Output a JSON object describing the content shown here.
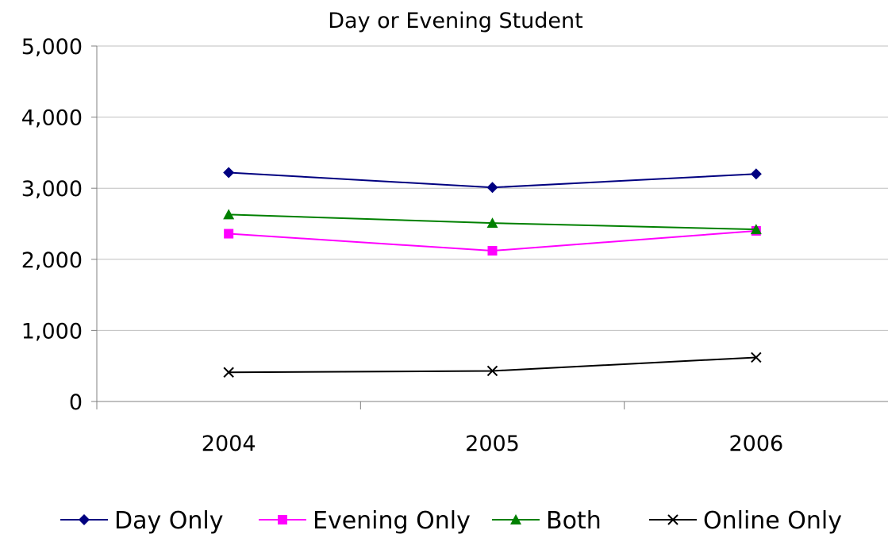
{
  "chart_data": {
    "type": "line",
    "title": "Day or Evening Student",
    "xlabel": "",
    "ylabel": "",
    "categories": [
      "2004",
      "2005",
      "2006"
    ],
    "ylim": [
      0,
      5000
    ],
    "yticks": [
      0,
      1000,
      2000,
      3000,
      4000,
      5000
    ],
    "ytick_labels": [
      "0",
      "1,000",
      "2,000",
      "3,000",
      "4,000",
      "5,000"
    ],
    "grid": true,
    "legend_position": "bottom",
    "series": [
      {
        "name": "Day Only",
        "values": [
          3220,
          3010,
          3200
        ],
        "color": "#000080",
        "marker": "diamond"
      },
      {
        "name": "Evening Only",
        "values": [
          2360,
          2120,
          2400
        ],
        "color": "#FF00FF",
        "marker": "square"
      },
      {
        "name": "Both",
        "values": [
          2630,
          2510,
          2420
        ],
        "color": "#008000",
        "marker": "triangle"
      },
      {
        "name": "Online Only",
        "values": [
          410,
          430,
          620
        ],
        "color": "#000000",
        "marker": "x"
      }
    ]
  }
}
